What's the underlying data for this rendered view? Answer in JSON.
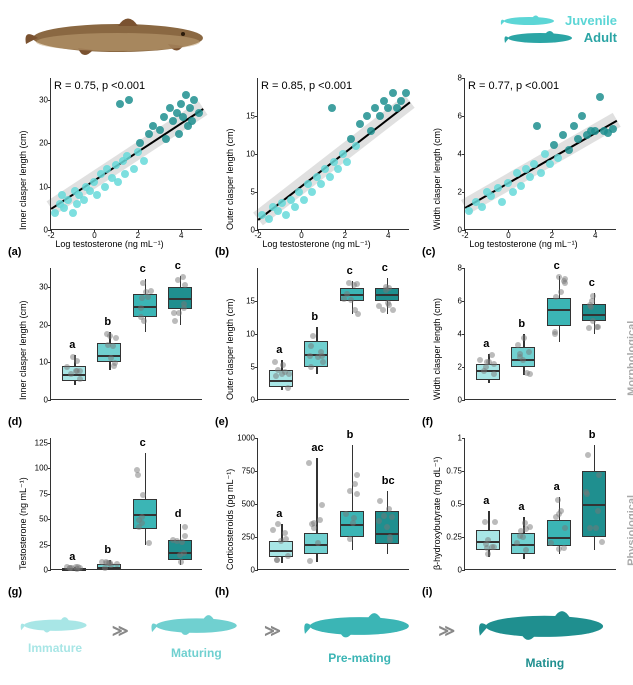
{
  "colors": {
    "juvenile": "#5cd6d6",
    "adult": "#2ba5a5",
    "ptJuv": "#66d9d9",
    "ptAdu": "#1f8f8f",
    "stages": [
      "#a8e6e6",
      "#70d0d0",
      "#3bb5b5",
      "#1f8f8f"
    ],
    "sharkBrown": "#7a5230"
  },
  "legend": {
    "juvenile": "Juvenile",
    "adult": "Adult"
  },
  "scatter": {
    "xlabel": "Log testosterone (ng mL⁻¹)",
    "panels": [
      {
        "id": "a",
        "ylabel": "Inner clasper length (cm)",
        "stat": "R = 0.75, p <0.001",
        "xlim": [
          -2,
          5
        ],
        "ylim": [
          0,
          35
        ],
        "yticks": [
          0,
          10,
          20,
          30
        ],
        "xticks": [
          -2,
          0,
          2,
          4
        ],
        "reg": {
          "x1": -2,
          "y1": 5,
          "x2": 5,
          "y2": 28
        },
        "points": [
          {
            "x": -1.8,
            "y": 4,
            "c": "j"
          },
          {
            "x": -1.6,
            "y": 6,
            "c": "j"
          },
          {
            "x": -1.5,
            "y": 8,
            "c": "j"
          },
          {
            "x": -1.4,
            "y": 5,
            "c": "j"
          },
          {
            "x": -1.2,
            "y": 7,
            "c": "j"
          },
          {
            "x": -1.0,
            "y": 4,
            "c": "j"
          },
          {
            "x": -0.9,
            "y": 9,
            "c": "j"
          },
          {
            "x": -0.8,
            "y": 6,
            "c": "j"
          },
          {
            "x": -0.7,
            "y": 8,
            "c": "j"
          },
          {
            "x": -0.5,
            "y": 7,
            "c": "j"
          },
          {
            "x": -0.4,
            "y": 10,
            "c": "j"
          },
          {
            "x": -0.2,
            "y": 9,
            "c": "j"
          },
          {
            "x": 0.0,
            "y": 11,
            "c": "j"
          },
          {
            "x": 0.1,
            "y": 8,
            "c": "j"
          },
          {
            "x": 0.3,
            "y": 13,
            "c": "j"
          },
          {
            "x": 0.5,
            "y": 10,
            "c": "j"
          },
          {
            "x": 0.6,
            "y": 14,
            "c": "j"
          },
          {
            "x": 0.8,
            "y": 12,
            "c": "j"
          },
          {
            "x": 1.0,
            "y": 15,
            "c": "j"
          },
          {
            "x": 1.1,
            "y": 11,
            "c": "j"
          },
          {
            "x": 1.2,
            "y": 29,
            "c": "a"
          },
          {
            "x": 1.3,
            "y": 16,
            "c": "j"
          },
          {
            "x": 1.4,
            "y": 13,
            "c": "j"
          },
          {
            "x": 1.5,
            "y": 17,
            "c": "j"
          },
          {
            "x": 1.6,
            "y": 30,
            "c": "a"
          },
          {
            "x": 1.8,
            "y": 14,
            "c": "j"
          },
          {
            "x": 2.0,
            "y": 18,
            "c": "j"
          },
          {
            "x": 2.1,
            "y": 20,
            "c": "a"
          },
          {
            "x": 2.3,
            "y": 16,
            "c": "j"
          },
          {
            "x": 2.5,
            "y": 22,
            "c": "a"
          },
          {
            "x": 2.7,
            "y": 24,
            "c": "a"
          },
          {
            "x": 3.0,
            "y": 23,
            "c": "a"
          },
          {
            "x": 3.2,
            "y": 26,
            "c": "a"
          },
          {
            "x": 3.3,
            "y": 21,
            "c": "a"
          },
          {
            "x": 3.5,
            "y": 28,
            "c": "a"
          },
          {
            "x": 3.6,
            "y": 25,
            "c": "a"
          },
          {
            "x": 3.8,
            "y": 27,
            "c": "a"
          },
          {
            "x": 3.9,
            "y": 22,
            "c": "a"
          },
          {
            "x": 4.0,
            "y": 29,
            "c": "a"
          },
          {
            "x": 4.1,
            "y": 26,
            "c": "a"
          },
          {
            "x": 4.2,
            "y": 31,
            "c": "a"
          },
          {
            "x": 4.3,
            "y": 24,
            "c": "a"
          },
          {
            "x": 4.4,
            "y": 28,
            "c": "a"
          },
          {
            "x": 4.5,
            "y": 25,
            "c": "a"
          },
          {
            "x": 4.6,
            "y": 30,
            "c": "a"
          },
          {
            "x": 4.8,
            "y": 27,
            "c": "a"
          }
        ]
      },
      {
        "id": "b",
        "ylabel": "Outer clasper length (cm)",
        "stat": "R = 0.85, p <0.001",
        "xlim": [
          -2,
          5
        ],
        "ylim": [
          0,
          20
        ],
        "yticks": [
          0,
          5,
          10,
          15
        ],
        "xticks": [
          -2,
          0,
          2,
          4
        ],
        "reg": {
          "x1": -2,
          "y1": 1.5,
          "x2": 5,
          "y2": 17
        },
        "points": [
          {
            "x": -1.8,
            "y": 2,
            "c": "j"
          },
          {
            "x": -1.5,
            "y": 1.5,
            "c": "j"
          },
          {
            "x": -1.3,
            "y": 3,
            "c": "j"
          },
          {
            "x": -1.1,
            "y": 2.5,
            "c": "j"
          },
          {
            "x": -0.9,
            "y": 3.5,
            "c": "j"
          },
          {
            "x": -0.7,
            "y": 2,
            "c": "j"
          },
          {
            "x": -0.5,
            "y": 4,
            "c": "j"
          },
          {
            "x": -0.3,
            "y": 3,
            "c": "j"
          },
          {
            "x": -0.1,
            "y": 5,
            "c": "j"
          },
          {
            "x": 0.1,
            "y": 4,
            "c": "j"
          },
          {
            "x": 0.3,
            "y": 6,
            "c": "j"
          },
          {
            "x": 0.5,
            "y": 5,
            "c": "j"
          },
          {
            "x": 0.7,
            "y": 7,
            "c": "j"
          },
          {
            "x": 0.9,
            "y": 6,
            "c": "j"
          },
          {
            "x": 1.1,
            "y": 8,
            "c": "j"
          },
          {
            "x": 1.3,
            "y": 7,
            "c": "j"
          },
          {
            "x": 1.4,
            "y": 16,
            "c": "a"
          },
          {
            "x": 1.5,
            "y": 9,
            "c": "j"
          },
          {
            "x": 1.7,
            "y": 8,
            "c": "j"
          },
          {
            "x": 1.9,
            "y": 10,
            "c": "j"
          },
          {
            "x": 2.1,
            "y": 9,
            "c": "j"
          },
          {
            "x": 2.3,
            "y": 12,
            "c": "a"
          },
          {
            "x": 2.5,
            "y": 11,
            "c": "j"
          },
          {
            "x": 2.7,
            "y": 14,
            "c": "a"
          },
          {
            "x": 3.0,
            "y": 15,
            "c": "a"
          },
          {
            "x": 3.2,
            "y": 13,
            "c": "a"
          },
          {
            "x": 3.4,
            "y": 16,
            "c": "a"
          },
          {
            "x": 3.6,
            "y": 15,
            "c": "a"
          },
          {
            "x": 3.8,
            "y": 17,
            "c": "a"
          },
          {
            "x": 4.0,
            "y": 16,
            "c": "a"
          },
          {
            "x": 4.2,
            "y": 18,
            "c": "a"
          },
          {
            "x": 4.4,
            "y": 16,
            "c": "a"
          },
          {
            "x": 4.6,
            "y": 17,
            "c": "a"
          },
          {
            "x": 4.8,
            "y": 18,
            "c": "a"
          }
        ]
      },
      {
        "id": "c",
        "ylabel": "Width clasper length (cm)",
        "stat": "R = 0.77, p <0.001",
        "xlim": [
          -2,
          5
        ],
        "ylim": [
          0,
          8
        ],
        "yticks": [
          0,
          2,
          4,
          6,
          8
        ],
        "xticks": [
          -2,
          0,
          2,
          4
        ],
        "reg": {
          "x1": -2,
          "y1": 1.2,
          "x2": 5,
          "y2": 5.8
        },
        "points": [
          {
            "x": -1.8,
            "y": 1,
            "c": "j"
          },
          {
            "x": -1.5,
            "y": 1.5,
            "c": "j"
          },
          {
            "x": -1.2,
            "y": 1.2,
            "c": "j"
          },
          {
            "x": -1.0,
            "y": 2,
            "c": "j"
          },
          {
            "x": -0.8,
            "y": 1.8,
            "c": "j"
          },
          {
            "x": -0.5,
            "y": 2.2,
            "c": "j"
          },
          {
            "x": -0.3,
            "y": 1.5,
            "c": "j"
          },
          {
            "x": 0.0,
            "y": 2.5,
            "c": "j"
          },
          {
            "x": 0.2,
            "y": 2,
            "c": "j"
          },
          {
            "x": 0.4,
            "y": 3,
            "c": "j"
          },
          {
            "x": 0.6,
            "y": 2.3,
            "c": "j"
          },
          {
            "x": 0.8,
            "y": 3.2,
            "c": "j"
          },
          {
            "x": 1.0,
            "y": 2.8,
            "c": "j"
          },
          {
            "x": 1.2,
            "y": 3.5,
            "c": "j"
          },
          {
            "x": 1.3,
            "y": 5.5,
            "c": "a"
          },
          {
            "x": 1.5,
            "y": 3,
            "c": "j"
          },
          {
            "x": 1.7,
            "y": 4,
            "c": "j"
          },
          {
            "x": 1.9,
            "y": 3.5,
            "c": "j"
          },
          {
            "x": 2.1,
            "y": 4.5,
            "c": "a"
          },
          {
            "x": 2.3,
            "y": 3.8,
            "c": "j"
          },
          {
            "x": 2.5,
            "y": 5,
            "c": "a"
          },
          {
            "x": 2.8,
            "y": 4.2,
            "c": "a"
          },
          {
            "x": 3.0,
            "y": 5.5,
            "c": "a"
          },
          {
            "x": 3.2,
            "y": 4.8,
            "c": "a"
          },
          {
            "x": 3.4,
            "y": 6,
            "c": "a"
          },
          {
            "x": 3.6,
            "y": 5,
            "c": "a"
          },
          {
            "x": 3.8,
            "y": 5.2,
            "c": "a"
          },
          {
            "x": 4.0,
            "y": 5.2,
            "c": "a"
          },
          {
            "x": 4.2,
            "y": 7,
            "c": "a"
          },
          {
            "x": 4.4,
            "y": 5.2,
            "c": "a"
          },
          {
            "x": 4.6,
            "y": 5.1,
            "c": "a"
          },
          {
            "x": 4.8,
            "y": 5.3,
            "c": "a"
          }
        ]
      }
    ]
  },
  "box": {
    "sideLabels": {
      "row2": "Morphological\nmeasurements",
      "row3": "Physiological\nmeasurements"
    },
    "panels": [
      {
        "id": "d",
        "ylabel": "Inner clasper length (cm)",
        "ylim": [
          0,
          35
        ],
        "yticks": [
          0,
          10,
          20,
          30
        ],
        "letters": [
          "a",
          "b",
          "c",
          "c"
        ],
        "boxes": [
          {
            "q1": 5,
            "med": 7,
            "q3": 9,
            "lo": 4,
            "hi": 12,
            "c": 0
          },
          {
            "q1": 10,
            "med": 12,
            "q3": 15,
            "lo": 8,
            "hi": 18,
            "c": 1
          },
          {
            "q1": 22,
            "med": 25,
            "q3": 28,
            "lo": 18,
            "hi": 32,
            "c": 2
          },
          {
            "q1": 24,
            "med": 27,
            "q3": 30,
            "lo": 20,
            "hi": 33,
            "c": 3
          }
        ]
      },
      {
        "id": "e",
        "ylabel": "Outer clasper length (cm)",
        "ylim": [
          0,
          20
        ],
        "yticks": [
          0,
          5,
          10,
          15
        ],
        "letters": [
          "a",
          "b",
          "c",
          "c"
        ],
        "boxes": [
          {
            "q1": 2,
            "med": 3,
            "q3": 4.5,
            "lo": 1.5,
            "hi": 6,
            "c": 0
          },
          {
            "q1": 5,
            "med": 7,
            "q3": 9,
            "lo": 4,
            "hi": 11,
            "c": 1
          },
          {
            "q1": 15,
            "med": 16,
            "q3": 17,
            "lo": 13,
            "hi": 18,
            "c": 2
          },
          {
            "q1": 15,
            "med": 16,
            "q3": 17,
            "lo": 13,
            "hi": 18.5,
            "c": 3
          }
        ]
      },
      {
        "id": "f",
        "ylabel": "Width clasper length (cm)",
        "ylim": [
          0,
          8
        ],
        "yticks": [
          0,
          2,
          4,
          6,
          8
        ],
        "letters": [
          "a",
          "b",
          "c",
          "c"
        ],
        "boxes": [
          {
            "q1": 1.2,
            "med": 1.8,
            "q3": 2.2,
            "lo": 1,
            "hi": 2.8,
            "c": 0
          },
          {
            "q1": 2,
            "med": 2.5,
            "q3": 3.2,
            "lo": 1.5,
            "hi": 4,
            "c": 1
          },
          {
            "q1": 4.5,
            "med": 5.5,
            "q3": 6.2,
            "lo": 3.5,
            "hi": 7.5,
            "c": 2
          },
          {
            "q1": 4.8,
            "med": 5.2,
            "q3": 5.8,
            "lo": 4,
            "hi": 6.5,
            "c": 3
          }
        ]
      },
      {
        "id": "g",
        "ylabel": "Testosterone (ng mL⁻¹)",
        "ylim": [
          0,
          130
        ],
        "yticks": [
          0,
          25,
          50,
          75,
          100,
          125
        ],
        "letters": [
          "a",
          "b",
          "c",
          "d"
        ],
        "boxes": [
          {
            "q1": 0.5,
            "med": 1,
            "q3": 2,
            "lo": 0.2,
            "hi": 3,
            "c": 0
          },
          {
            "q1": 2,
            "med": 3,
            "q3": 6,
            "lo": 1,
            "hi": 10,
            "c": 1
          },
          {
            "q1": 40,
            "med": 55,
            "q3": 70,
            "lo": 25,
            "hi": 115,
            "c": 2
          },
          {
            "q1": 10,
            "med": 18,
            "q3": 30,
            "lo": 5,
            "hi": 45,
            "c": 3
          }
        ]
      },
      {
        "id": "h",
        "ylabel": "Corticosteroids (pg mL⁻¹)",
        "ylim": [
          0,
          1000
        ],
        "yticks": [
          0,
          250,
          500,
          750,
          1000
        ],
        "letters": [
          "a",
          "ac",
          "b",
          "bc"
        ],
        "boxes": [
          {
            "q1": 100,
            "med": 150,
            "q3": 220,
            "lo": 50,
            "hi": 350,
            "c": 0
          },
          {
            "q1": 120,
            "med": 200,
            "q3": 280,
            "lo": 60,
            "hi": 850,
            "c": 1
          },
          {
            "q1": 250,
            "med": 350,
            "q3": 450,
            "lo": 150,
            "hi": 950,
            "c": 2
          },
          {
            "q1": 200,
            "med": 280,
            "q3": 450,
            "lo": 120,
            "hi": 600,
            "c": 3
          }
        ]
      },
      {
        "id": "i",
        "ylabel": "β-hydroxybutyrate (mg dL⁻¹)",
        "ylim": [
          0,
          1.0
        ],
        "yticks": [
          0,
          0.25,
          0.5,
          0.75,
          1.0
        ],
        "letters": [
          "a",
          "a",
          "a",
          "b"
        ],
        "boxes": [
          {
            "q1": 0.15,
            "med": 0.22,
            "q3": 0.3,
            "lo": 0.1,
            "hi": 0.45,
            "c": 0
          },
          {
            "q1": 0.12,
            "med": 0.2,
            "q3": 0.28,
            "lo": 0.08,
            "hi": 0.4,
            "c": 1
          },
          {
            "q1": 0.18,
            "med": 0.25,
            "q3": 0.38,
            "lo": 0.12,
            "hi": 0.55,
            "c": 2
          },
          {
            "q1": 0.25,
            "med": 0.5,
            "q3": 0.75,
            "lo": 0.15,
            "hi": 0.95,
            "c": 3
          }
        ]
      }
    ]
  },
  "stages": [
    "Immature",
    "Maturing",
    "Pre-mating",
    "Mating"
  ]
}
